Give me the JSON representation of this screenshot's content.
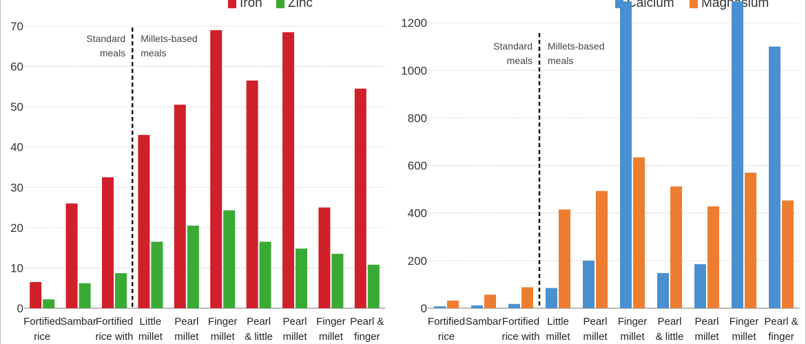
{
  "chart_data": [
    {
      "type": "bar",
      "categories": [
        [
          "Fortified",
          "rice"
        ],
        [
          "Sambar"
        ],
        [
          "Fortified",
          "rice with"
        ],
        [
          "Little",
          "millet"
        ],
        [
          "Pearl",
          "millet"
        ],
        [
          "Finger",
          "millet"
        ],
        [
          "Pearl",
          "& little"
        ],
        [
          "Pearl",
          "millet"
        ],
        [
          "Finger",
          "millet"
        ],
        [
          "Pearl &",
          "finger"
        ]
      ],
      "series": [
        {
          "name": "Iron",
          "color": "#d0202a",
          "values": [
            6.5,
            26,
            32.5,
            43,
            50.5,
            69,
            56.5,
            68.5,
            25,
            54.5
          ]
        },
        {
          "name": "Zinc",
          "color": "#3aaa35",
          "values": [
            2.2,
            6.2,
            8.7,
            16.5,
            20.5,
            24.3,
            16.5,
            14.8,
            13.5,
            10.8
          ]
        }
      ],
      "ylim": [
        0,
        70
      ],
      "yticks": [
        0,
        10,
        20,
        30,
        40,
        50,
        60,
        70
      ],
      "grid": true,
      "divider_after_index": 2,
      "annotations": {
        "standard": [
          "Standard",
          "meals"
        ],
        "millets": [
          "Millets-based",
          "meals"
        ]
      }
    },
    {
      "type": "bar",
      "categories": [
        [
          "Fortified",
          "rice"
        ],
        [
          "Sambar"
        ],
        [
          "Fortified",
          "rice with"
        ],
        [
          "Little",
          "millet"
        ],
        [
          "Pearl",
          "millet"
        ],
        [
          "Finger",
          "millet"
        ],
        [
          "Pearl",
          "& little"
        ],
        [
          "Pearl",
          "millet"
        ],
        [
          "Finger",
          "millet"
        ],
        [
          "Pearl &",
          "finger"
        ]
      ],
      "series": [
        {
          "name": "Calcium",
          "color": "#4a90d0",
          "values": [
            8,
            12,
            18,
            85,
            200,
            1290,
            148,
            185,
            1290,
            1100
          ]
        },
        {
          "name": "Magnesium",
          "color": "#ed7d31",
          "values": [
            32,
            57,
            88,
            415,
            493,
            634,
            512,
            428,
            570,
            453
          ]
        }
      ],
      "ylim": [
        0,
        1290
      ],
      "yticks": [
        0,
        200,
        400,
        600,
        800,
        1000,
        1200
      ],
      "grid": true,
      "divider_after_index": 2,
      "annotations": {
        "standard": [
          "Standard",
          "meals"
        ],
        "millets": [
          "Millets-based",
          "meals"
        ]
      }
    }
  ]
}
